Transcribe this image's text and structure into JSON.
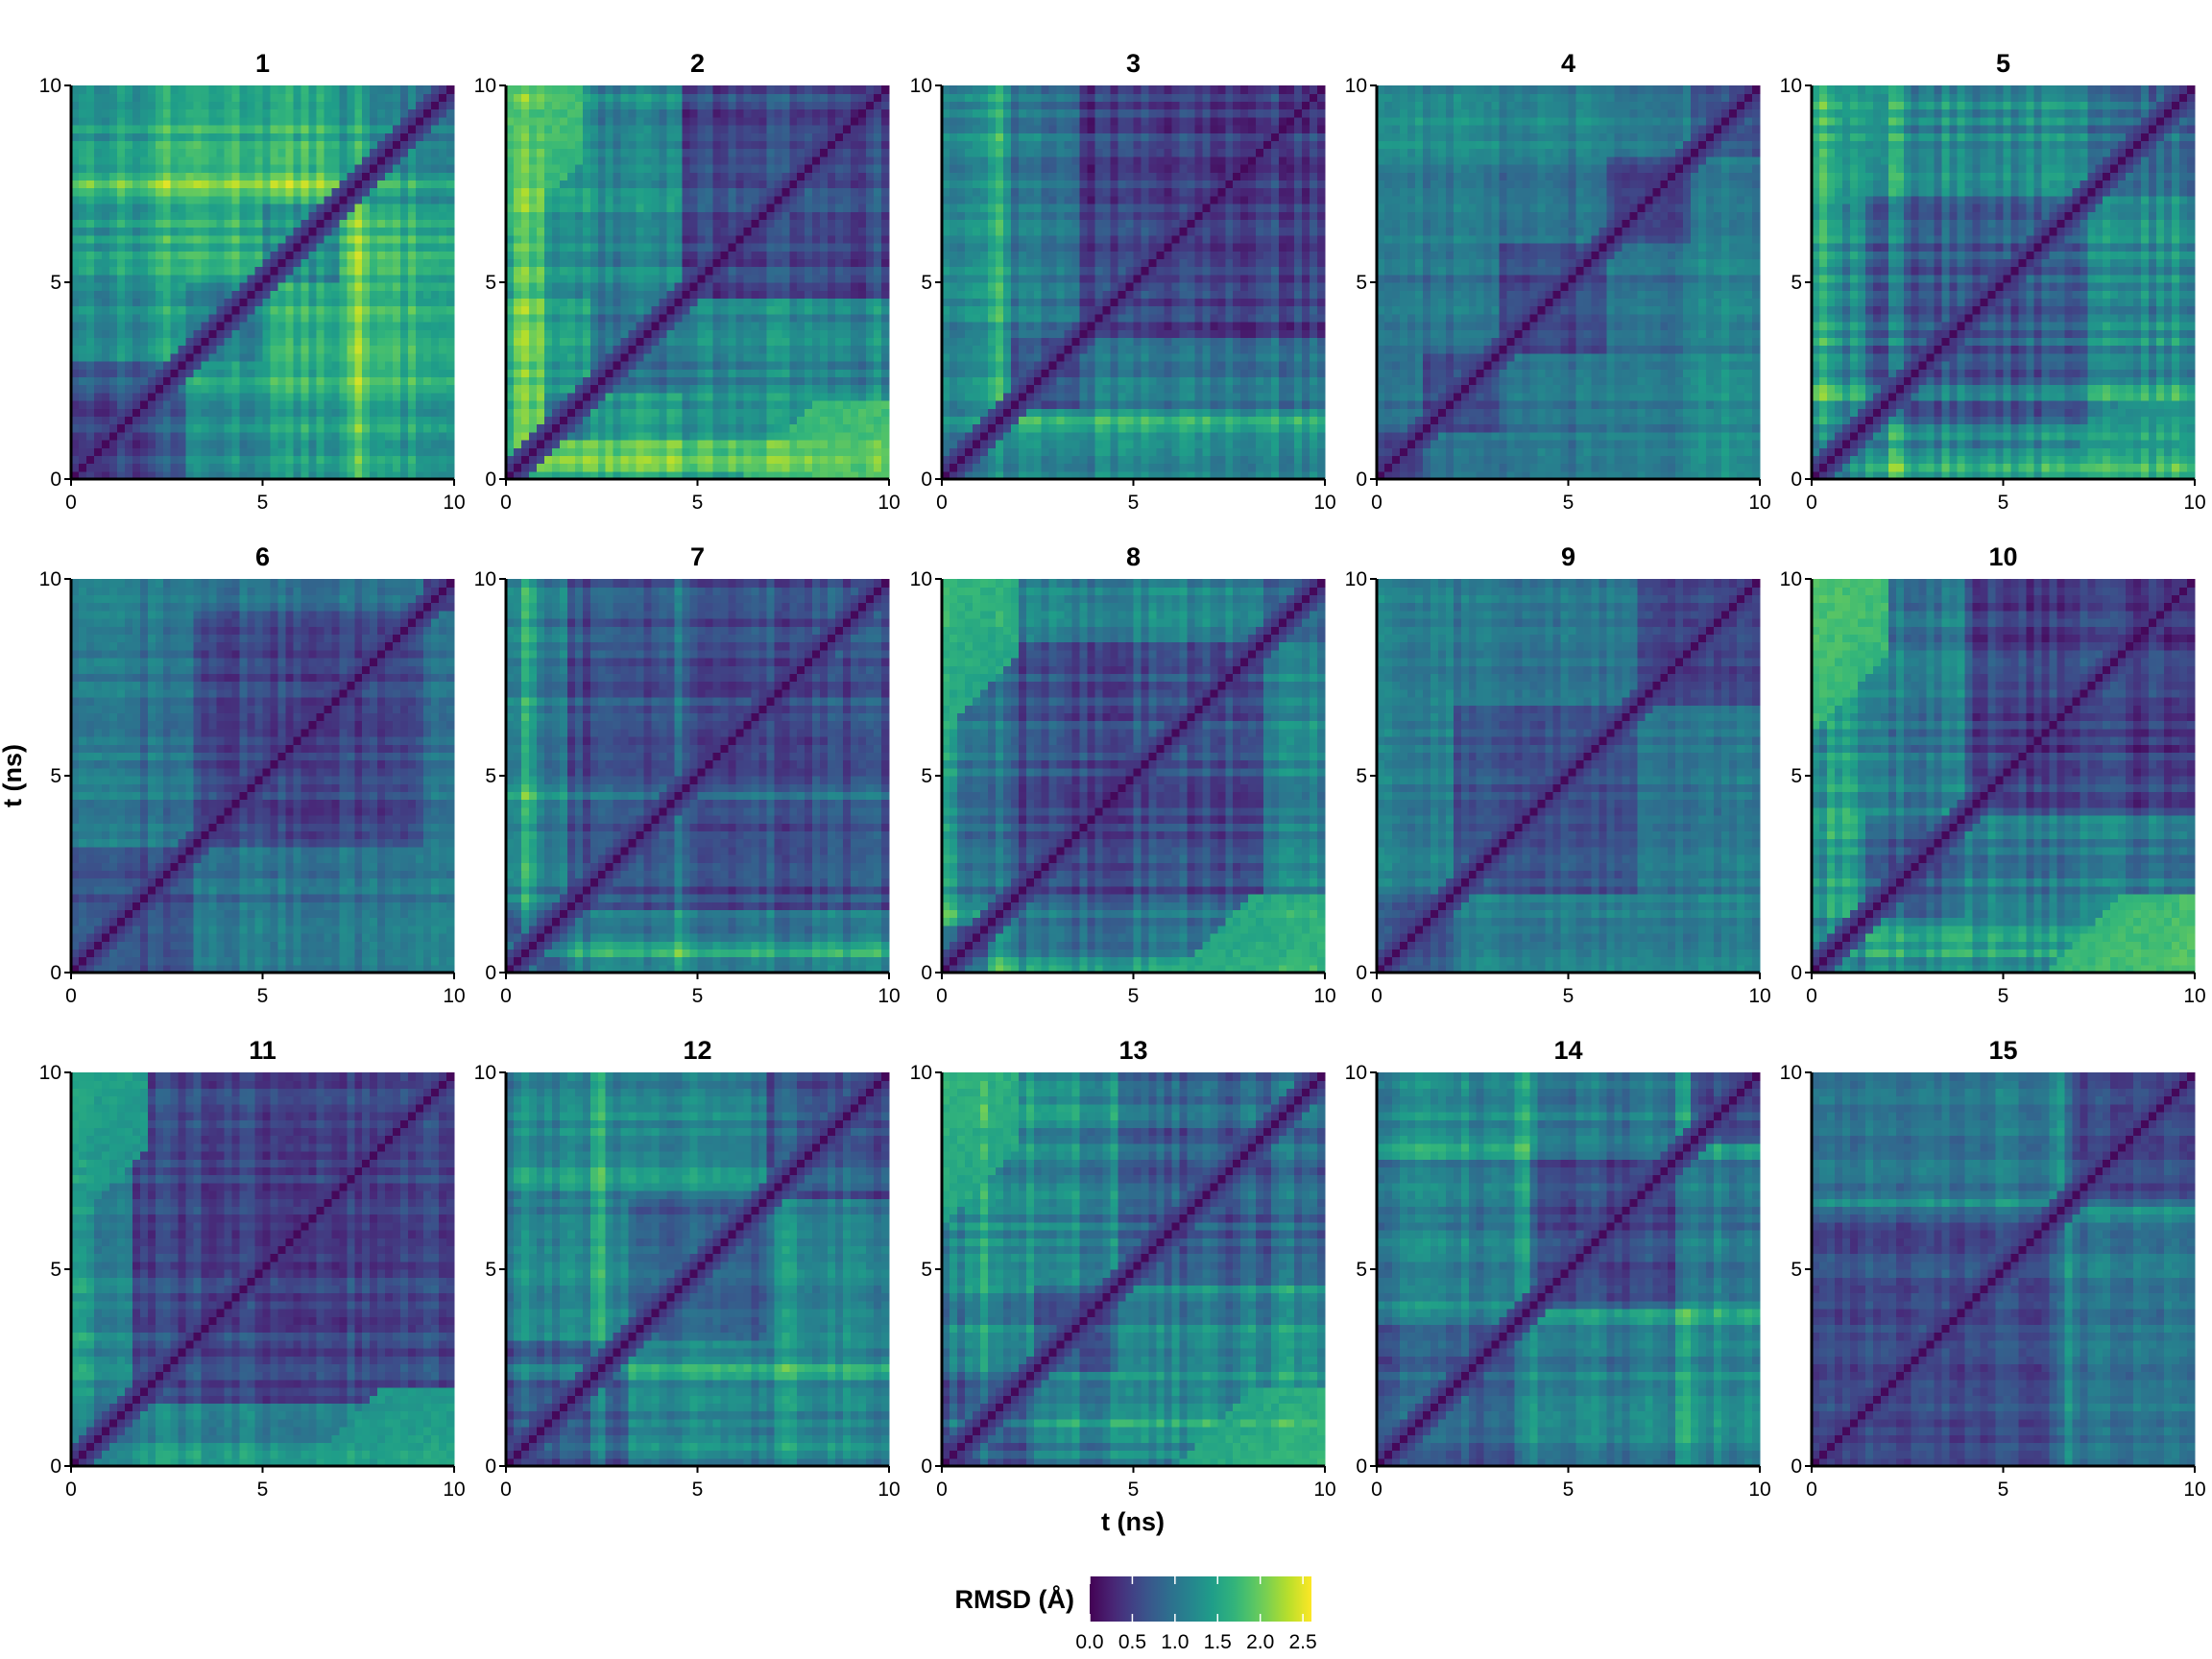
{
  "chart_data": {
    "type": "heatmap",
    "colormap": "viridis",
    "xlabel": "t (ns)",
    "ylabel": "t (ns)",
    "xlim": [
      0,
      10
    ],
    "ylim": [
      0,
      10
    ],
    "x_ticks": [
      0,
      5,
      10
    ],
    "y_ticks": [
      0,
      5,
      10
    ],
    "grid": false,
    "colorbar": {
      "title": "RMSD (Å)",
      "range": [
        0,
        2.6
      ],
      "ticks": [
        0.0,
        0.5,
        1.0,
        1.5,
        2.0,
        2.5
      ],
      "tick_labels": [
        "0.0",
        "0.5",
        "1.0",
        "1.5",
        "2.0",
        "2.5"
      ],
      "placement": "bottom-center"
    },
    "panels": [
      {
        "title": "1",
        "boundaries_ns": [
          3.0,
          5.0,
          7.0
        ],
        "block_means": [
          0.55,
          1.15,
          1.3,
          1.2
        ],
        "noise": 0.18,
        "stripe_times_ns": [
          2.5,
          7.5
        ]
      },
      {
        "title": "2",
        "boundaries_ns": [
          1.0,
          2.3,
          4.7
        ],
        "block_means": [
          1.25,
          1.05,
          0.95,
          0.6
        ],
        "noise": 0.2,
        "stripe_times_ns": [
          0.4,
          0.8
        ],
        "far_corner_rmsd": 1.9
      },
      {
        "title": "3",
        "boundaries_ns": [
          1.8,
          3.6
        ],
        "block_means": [
          1.05,
          0.7,
          0.5
        ],
        "noise": 0.18,
        "stripe_times_ns": [
          1.5
        ]
      },
      {
        "title": "4",
        "boundaries_ns": [
          1.2,
          3.2,
          6.0,
          8.2
        ],
        "block_means": [
          0.55,
          0.6,
          0.5,
          0.6,
          0.65
        ],
        "noise": 0.15,
        "stripe_times_ns": []
      },
      {
        "title": "5",
        "boundaries_ns": [
          1.4,
          7.3
        ],
        "block_means": [
          0.9,
          0.75,
          0.85
        ],
        "noise": 0.22,
        "stripe_times_ns": [
          0.3,
          2.2
        ],
        "far_corner_rmsd": 1.4
      },
      {
        "title": "6",
        "boundaries_ns": [
          3.2,
          9.2
        ],
        "block_means": [
          0.6,
          0.55,
          0.7
        ],
        "noise": 0.15,
        "stripe_times_ns": []
      },
      {
        "title": "7",
        "boundaries_ns": [
          1.7
        ],
        "block_means": [
          0.7,
          0.6
        ],
        "noise": 0.18,
        "stripe_times_ns": [
          0.5,
          4.5
        ]
      },
      {
        "title": "8",
        "boundaries_ns": [
          1.2,
          8.5
        ],
        "block_means": [
          0.75,
          0.6,
          0.85
        ],
        "noise": 0.22,
        "stripe_times_ns": [
          0.2,
          1.5
        ],
        "far_corner_rmsd": 1.7
      },
      {
        "title": "9",
        "boundaries_ns": [
          2.0,
          6.8
        ],
        "block_means": [
          0.75,
          0.65,
          0.55
        ],
        "noise": 0.13,
        "stripe_times_ns": []
      },
      {
        "title": "10",
        "boundaries_ns": [
          1.4,
          4.1
        ],
        "block_means": [
          0.8,
          0.75,
          0.5
        ],
        "noise": 0.2,
        "stripe_times_ns": [
          0.5,
          1.0
        ],
        "far_corner_rmsd": 1.9
      },
      {
        "title": "11",
        "boundaries_ns": [
          1.6
        ],
        "block_means": [
          0.8,
          0.55
        ],
        "noise": 0.18,
        "stripe_times_ns": [
          0.3
        ],
        "far_corner_rmsd": 1.5
      },
      {
        "title": "12",
        "boundaries_ns": [
          3.3,
          6.8
        ],
        "block_means": [
          0.7,
          0.75,
          0.7
        ],
        "noise": 0.2,
        "stripe_times_ns": [
          2.5,
          7.3
        ]
      },
      {
        "title": "13",
        "boundaries_ns": [
          2.4,
          4.7
        ],
        "block_means": [
          0.65,
          0.7,
          0.8
        ],
        "noise": 0.22,
        "stripe_times_ns": [
          1.0,
          9.0
        ],
        "far_corner_rmsd": 1.7
      },
      {
        "title": "14",
        "boundaries_ns": [
          4.0,
          8.2
        ],
        "block_means": [
          0.75,
          0.6,
          0.65
        ],
        "noise": 0.18,
        "stripe_times_ns": [
          3.85,
          8.1
        ]
      },
      {
        "title": "15",
        "boundaries_ns": [
          6.6
        ],
        "block_means": [
          0.65,
          0.55
        ],
        "noise": 0.15,
        "stripe_times_ns": [
          6.6
        ]
      }
    ]
  }
}
